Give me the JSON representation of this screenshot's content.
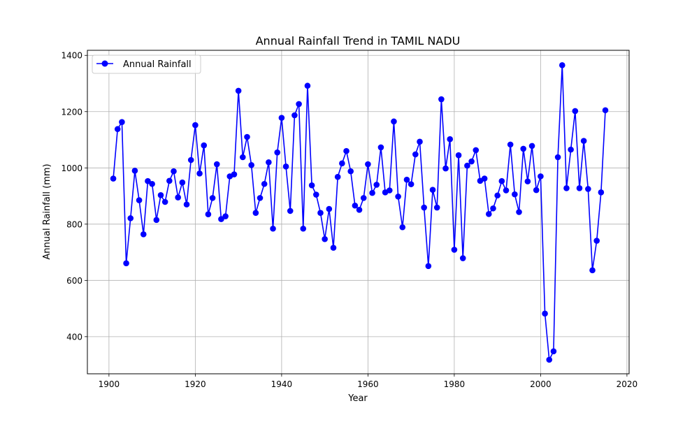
{
  "chart_data": {
    "type": "line",
    "title": "Annual Rainfall Trend in TAMIL NADU",
    "xlabel": "Year",
    "ylabel": "Annual Rainfall (mm)",
    "xlim": [
      1895,
      2020.5
    ],
    "ylim": [
      268,
      1418
    ],
    "xticks": [
      1900,
      1920,
      1940,
      1960,
      1980,
      2000,
      2020
    ],
    "yticks": [
      400,
      600,
      800,
      1000,
      1200,
      1400
    ],
    "grid": true,
    "legend_position": "top-left",
    "series": [
      {
        "name": "Annual Rainfall",
        "color": "#0000ff",
        "marker": "circle",
        "x": [
          1901,
          1902,
          1903,
          1904,
          1905,
          1906,
          1907,
          1908,
          1909,
          1910,
          1911,
          1912,
          1913,
          1914,
          1915,
          1916,
          1917,
          1918,
          1919,
          1920,
          1921,
          1922,
          1923,
          1924,
          1925,
          1926,
          1927,
          1928,
          1929,
          1930,
          1931,
          1932,
          1933,
          1934,
          1935,
          1936,
          1937,
          1938,
          1939,
          1940,
          1941,
          1942,
          1943,
          1944,
          1945,
          1946,
          1947,
          1948,
          1949,
          1950,
          1951,
          1952,
          1953,
          1954,
          1955,
          1956,
          1957,
          1958,
          1959,
          1960,
          1961,
          1962,
          1963,
          1964,
          1965,
          1966,
          1967,
          1968,
          1969,
          1970,
          1971,
          1972,
          1973,
          1974,
          1975,
          1976,
          1977,
          1978,
          1979,
          1980,
          1981,
          1982,
          1983,
          1984,
          1985,
          1986,
          1987,
          1988,
          1989,
          1990,
          1991,
          1992,
          1993,
          1994,
          1995,
          1996,
          1997,
          1998,
          1999,
          2000,
          2001,
          2002,
          2003,
          2004,
          2005,
          2006,
          2007,
          2008,
          2009,
          2010,
          2011,
          2012,
          2013,
          2014,
          2015
        ],
        "y": [
          962,
          1138,
          1163,
          661,
          821,
          990,
          885,
          764,
          953,
          943,
          815,
          903,
          879,
          954,
          988,
          895,
          948,
          870,
          1028,
          1152,
          980,
          1080,
          835,
          893,
          1013,
          818,
          828,
          970,
          977,
          1274,
          1038,
          1110,
          1010,
          840,
          893,
          943,
          1020,
          784,
          1055,
          1178,
          1005,
          847,
          1187,
          1227,
          784,
          1292,
          938,
          905,
          840,
          747,
          854,
          716,
          968,
          1016,
          1060,
          988,
          866,
          851,
          893,
          1013,
          911,
          940,
          1073,
          913,
          920,
          1165,
          898,
          789,
          958,
          942,
          1048,
          1093,
          859,
          651,
          922,
          859,
          1244,
          998,
          1102,
          709,
          1045,
          679,
          1008,
          1023,
          1063,
          954,
          962,
          836,
          856,
          902,
          953,
          920,
          1083,
          906,
          843,
          1068,
          952,
          1078,
          921,
          970,
          482,
          318,
          348,
          1038,
          1365,
          928,
          1065,
          1202,
          928,
          1096,
          925,
          636,
          741,
          913,
          1205
        ]
      }
    ]
  }
}
